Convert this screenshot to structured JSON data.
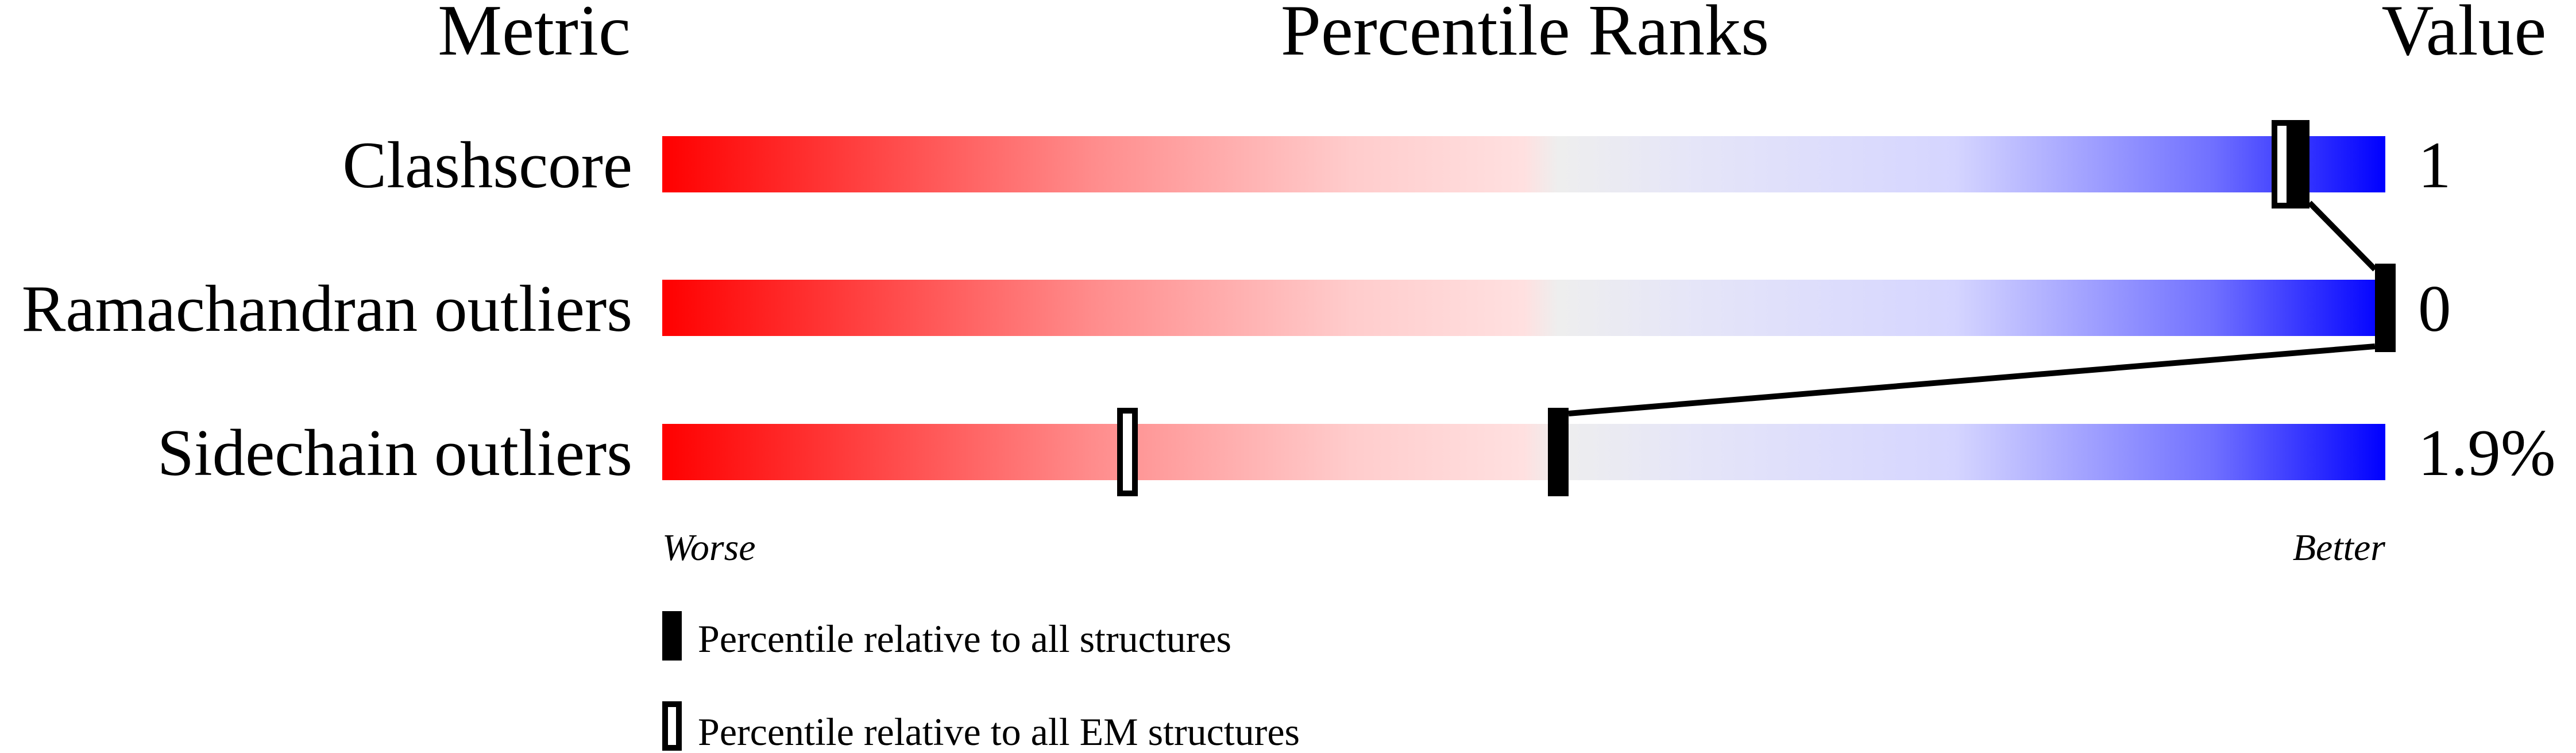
{
  "chart_data": {
    "type": "percentile-slider",
    "headers": {
      "metric": "Metric",
      "title": "Percentile Ranks",
      "value": "Value"
    },
    "metrics": [
      {
        "name": "Clashscore",
        "value": "1",
        "percentile_all": 95,
        "percentile_em": 94
      },
      {
        "name": "Ramachandran outliers",
        "value": "0",
        "percentile_all": 100,
        "percentile_em": null
      },
      {
        "name": "Sidechain outliers",
        "value": "1.9%",
        "percentile_all": 52,
        "percentile_em": 27
      }
    ],
    "scale_labels": {
      "worse": "Worse",
      "better": "Better"
    },
    "xlim": [
      0,
      100
    ],
    "gradient_colors": [
      "#ff0000",
      "#ff8c8c",
      "#ffcccc",
      "#ffe0e0",
      "#eeeeee",
      "#e5e5f8",
      "#d5d5ff",
      "#7070ff",
      "#0000ff"
    ],
    "legend": [
      {
        "marker": "filled",
        "label": "Percentile relative to all structures"
      },
      {
        "marker": "open",
        "label": "Percentile relative to all EM structures"
      }
    ]
  }
}
